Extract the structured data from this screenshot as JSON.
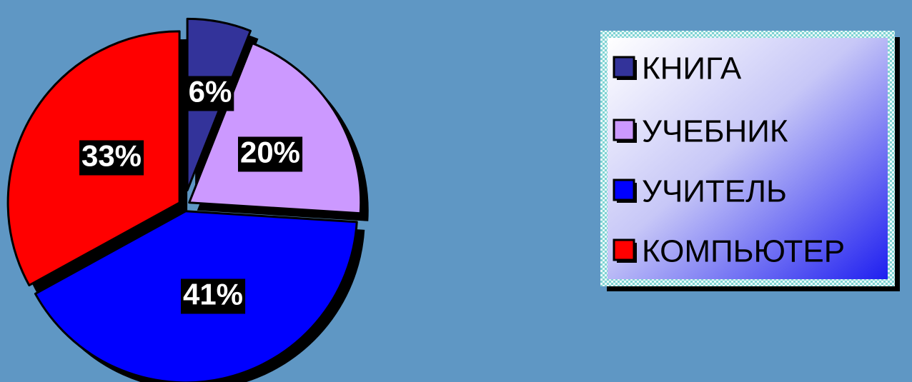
{
  "chart_data": {
    "type": "pie",
    "categories": [
      "КНИГА",
      "УЧЕБНИК",
      "УЧИТЕЛЬ",
      "КОМПЬЮТЕР"
    ],
    "values": [
      6,
      20,
      41,
      33
    ],
    "data_labels": [
      "6%",
      "20%",
      "41%",
      "33%"
    ],
    "colors": [
      "#33339a",
      "#cc99ff",
      "#0000ff",
      "#ff0000"
    ],
    "exploded": true,
    "legend_position": "right",
    "title": ""
  },
  "colors": {
    "background": "#5f97c4",
    "outline": "#000000",
    "label_box": "#000000",
    "label_text": "#ffffff",
    "legend_border": "#7fd3d3"
  }
}
